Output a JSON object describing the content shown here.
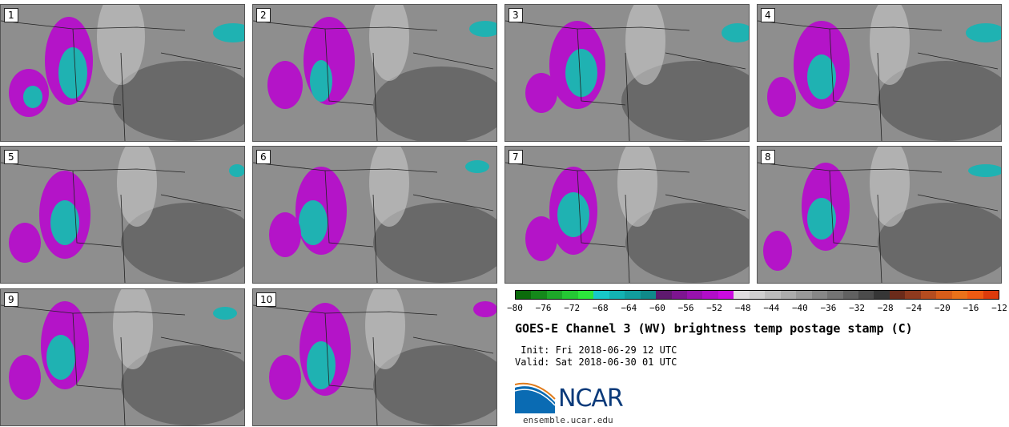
{
  "panels": [
    {
      "label": "1"
    },
    {
      "label": "2"
    },
    {
      "label": "3"
    },
    {
      "label": "4"
    },
    {
      "label": "5"
    },
    {
      "label": "6"
    },
    {
      "label": "7"
    },
    {
      "label": "8"
    },
    {
      "label": "9"
    },
    {
      "label": "10"
    }
  ],
  "colorbar": {
    "ticks": [
      "−80",
      "−76",
      "−72",
      "−68",
      "−64",
      "−60",
      "−56",
      "−52",
      "−48",
      "−44",
      "−40",
      "−36",
      "−32",
      "−28",
      "−24",
      "−20",
      "−16",
      "−12"
    ],
    "colors": [
      "#0b6b0b",
      "#14891a",
      "#1da829",
      "#24c834",
      "#2ce63c",
      "#17c9c9",
      "#13b2b2",
      "#119d9d",
      "#0f8a8a",
      "#5e1a6e",
      "#7d1590",
      "#9712ad",
      "#b10ec8",
      "#ca0be0",
      "#e0dde0",
      "#cfcfcf",
      "#bdbdbd",
      "#ababab",
      "#999999",
      "#878787",
      "#747474",
      "#616161",
      "#4b4b4b",
      "#363636",
      "#6b2b1a",
      "#8f3a1e",
      "#b54c1f",
      "#d85d1a",
      "#e9711a",
      "#ee5a12",
      "#dc3b0c"
    ]
  },
  "title": "GOES-E Channel 3 (WV) brightness temp postage stamp (C)",
  "init_line": " Init: Fri 2018-06-29 12 UTC",
  "valid_line": "Valid: Sat 2018-06-30 01 UTC",
  "logo_text": "NCAR",
  "website": "ensemble.ucar.edu"
}
